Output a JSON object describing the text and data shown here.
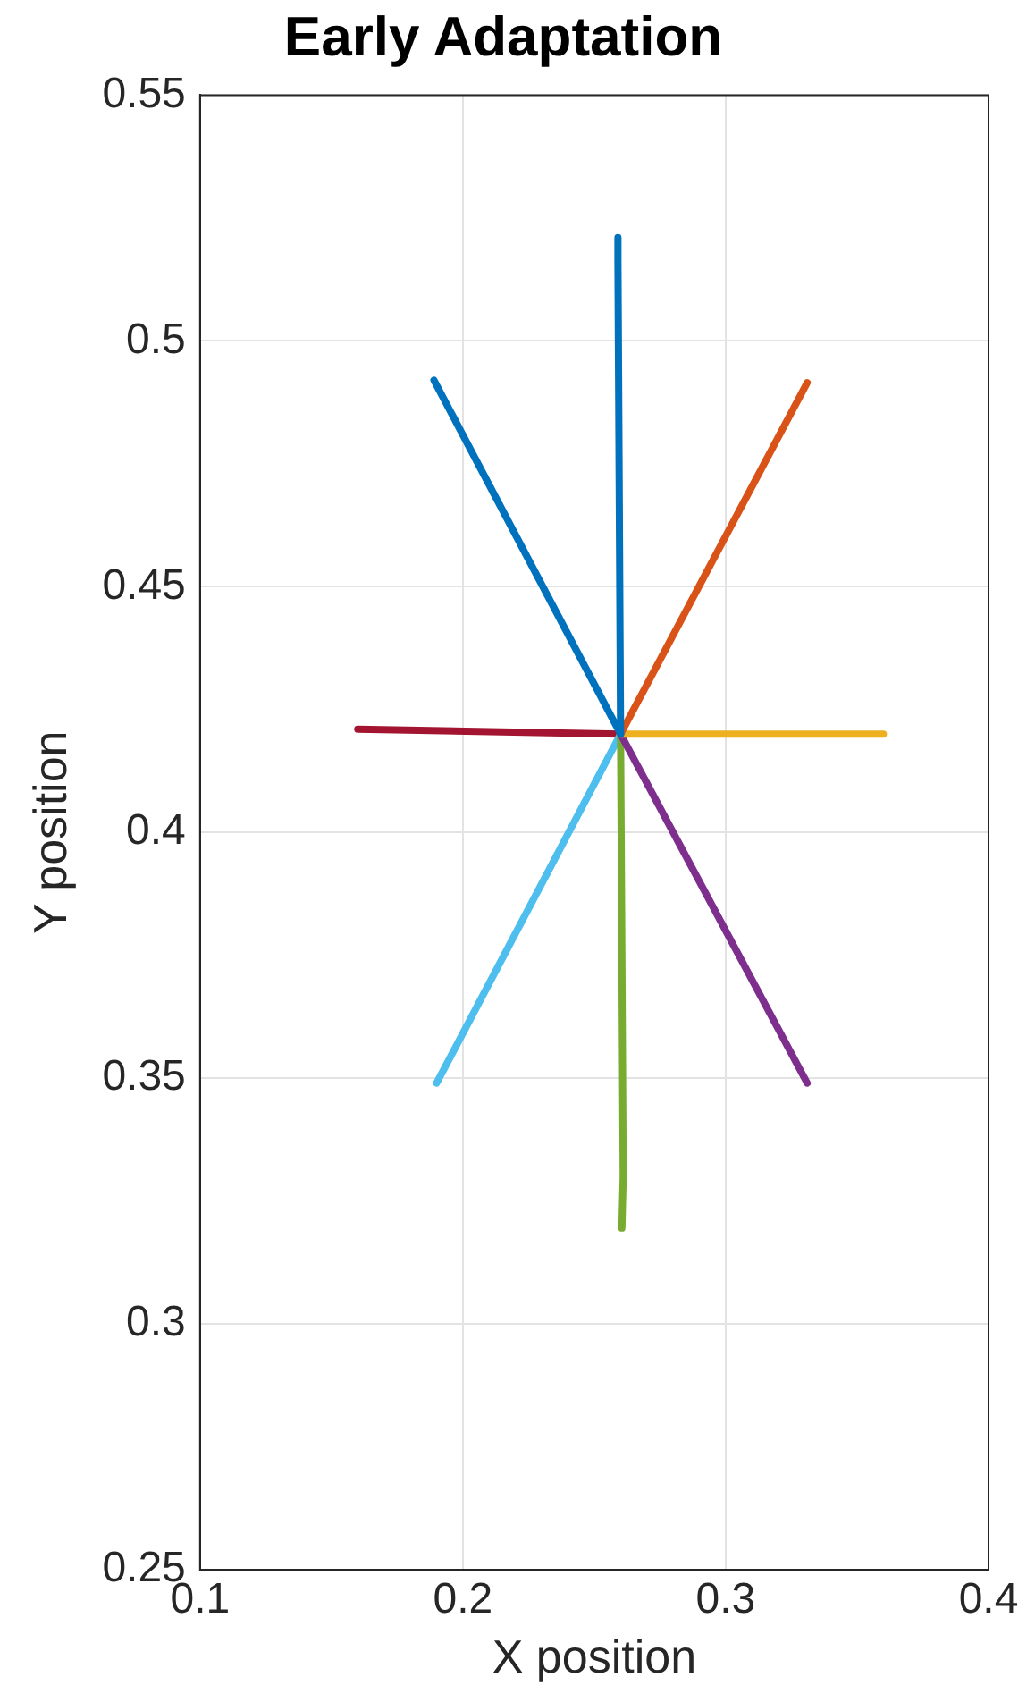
{
  "chart_data": {
    "type": "line",
    "title": "Early Adaptation",
    "xlabel": "X position",
    "ylabel": "Y position",
    "xlim": [
      0.1,
      0.4
    ],
    "xticks": [
      0.1,
      0.2,
      0.3,
      0.4
    ],
    "ylim": [
      0.25,
      0.55
    ],
    "yticks": [
      0.25,
      0.3,
      0.35,
      0.4,
      0.45,
      0.5,
      0.55
    ],
    "grid": true,
    "legend": false,
    "marker": "none",
    "line_style": "solid",
    "series": [
      {
        "color": "#0072bd",
        "x": [
          0.26,
          0.189
        ],
        "values": [
          0.42,
          0.492
        ]
      },
      {
        "color": "#0072bd",
        "x": [
          0.26,
          0.259,
          0.259
        ],
        "values": [
          0.42,
          0.516,
          0.521
        ]
      },
      {
        "color": "#d95319",
        "x": [
          0.26,
          0.331
        ],
        "values": [
          0.42,
          0.4915
        ]
      },
      {
        "color": "#edb120",
        "x": [
          0.26,
          0.36
        ],
        "values": [
          0.42,
          0.42
        ]
      },
      {
        "color": "#7e2f8e",
        "x": [
          0.26,
          0.331
        ],
        "values": [
          0.42,
          0.349
        ]
      },
      {
        "color": "#77ac30",
        "x": [
          0.26,
          0.261,
          0.2605
        ],
        "values": [
          0.42,
          0.33,
          0.3195
        ]
      },
      {
        "color": "#4dbeee",
        "x": [
          0.26,
          0.19
        ],
        "values": [
          0.42,
          0.349
        ]
      },
      {
        "color": "#a2142f",
        "x": [
          0.26,
          0.16
        ],
        "values": [
          0.42,
          0.421
        ]
      }
    ]
  }
}
